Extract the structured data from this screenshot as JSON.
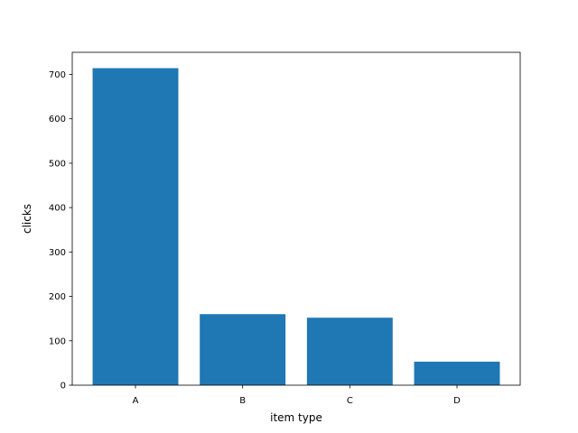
{
  "chart_data": {
    "type": "bar",
    "categories": [
      "A",
      "B",
      "C",
      "D"
    ],
    "values": [
      714,
      160,
      152,
      53
    ],
    "color": "#1f77b4",
    "xlabel": "item type",
    "ylabel": "clicks",
    "ylim": [
      0,
      749.7
    ],
    "yticks": [
      0,
      100,
      200,
      300,
      400,
      500,
      600,
      700
    ],
    "grid": false
  }
}
